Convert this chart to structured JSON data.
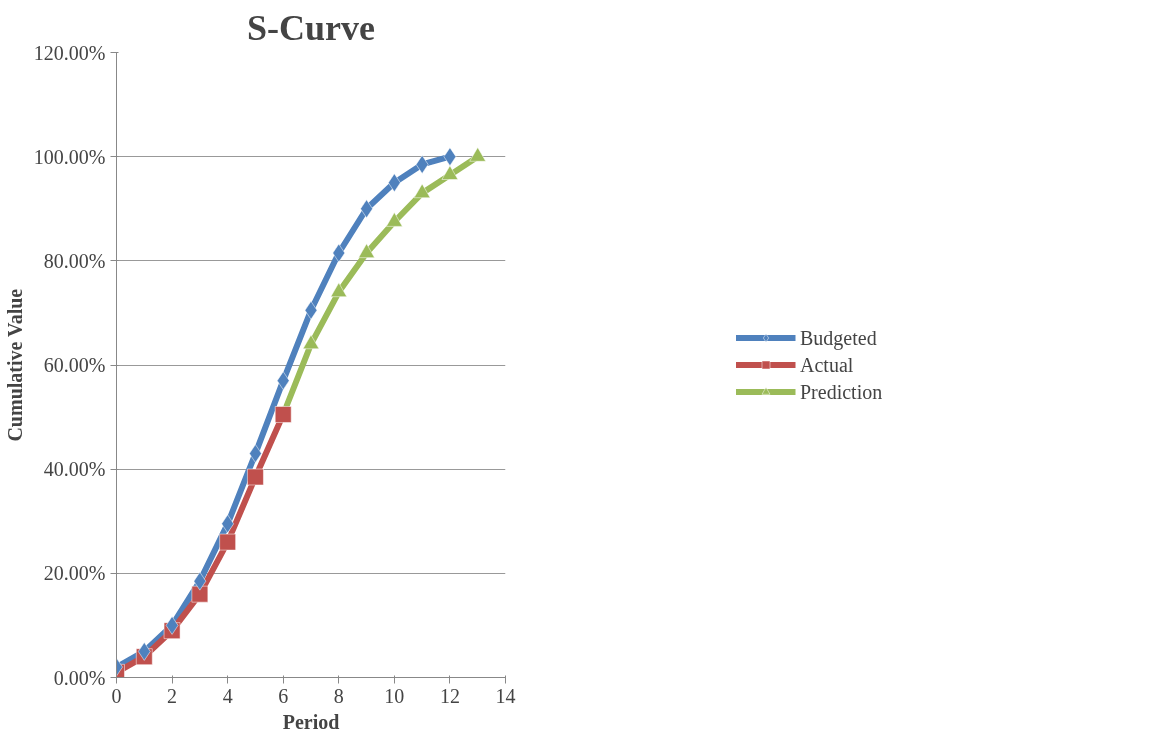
{
  "chart_data": {
    "type": "line",
    "title": "S-Curve",
    "xlabel": "Period",
    "ylabel": "Cumulative Value",
    "xlim": [
      0,
      14
    ],
    "xticks": [
      0,
      2,
      4,
      6,
      8,
      10,
      12,
      14
    ],
    "ylim": [
      0,
      120
    ],
    "yticks": [
      {
        "value": 0,
        "label": "0.00%"
      },
      {
        "value": 20,
        "label": "20.00%"
      },
      {
        "value": 40,
        "label": "40.00%"
      },
      {
        "value": 60,
        "label": "60.00%"
      },
      {
        "value": 80,
        "label": "80.00%"
      },
      {
        "value": 100,
        "label": "100.00%"
      },
      {
        "value": 120,
        "label": "120.00%"
      }
    ],
    "grid": "y",
    "legend": "right",
    "line_style": "solid",
    "series": [
      {
        "name": "Budgeted",
        "color": "#4f81bd",
        "marker": "diamond",
        "x": [
          0,
          1,
          2,
          3,
          4,
          5,
          6,
          7,
          8,
          9,
          10,
          11,
          12
        ],
        "values": [
          2,
          5,
          10,
          18.5,
          29.5,
          43,
          57,
          70.5,
          81.5,
          90,
          95,
          98.5,
          100
        ]
      },
      {
        "name": "Actual",
        "color": "#c0504d",
        "marker": "square",
        "x": [
          0,
          1,
          2,
          3,
          4,
          5,
          6
        ],
        "values": [
          1,
          4,
          9,
          16,
          26,
          38.5,
          50.5
        ]
      },
      {
        "name": "Prediction",
        "color": "#9bbb59",
        "marker": "triangle",
        "x": [
          6,
          7,
          8,
          9,
          10,
          11,
          12,
          13
        ],
        "values": [
          50.5,
          64,
          74,
          81.5,
          87.5,
          93,
          96.5,
          100
        ]
      }
    ]
  }
}
